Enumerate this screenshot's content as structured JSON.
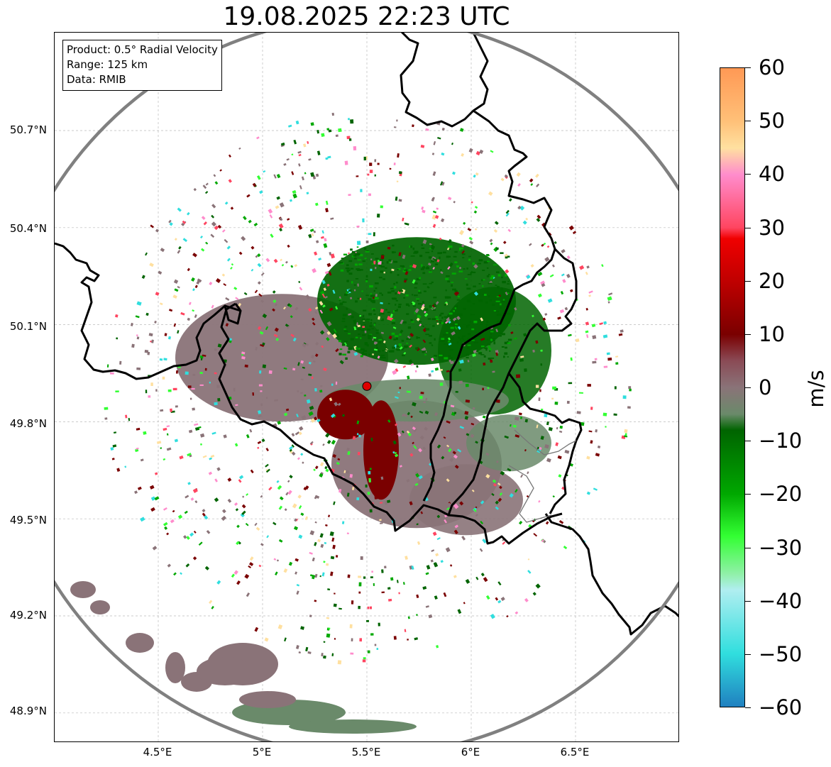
{
  "title": "19.08.2025 22:23 UTC",
  "info_box": {
    "product": "Product: 0.5° Radial Velocity",
    "range": "Range: 125 km",
    "data": "Data: RMIB"
  },
  "axes": {
    "y_ticks": [
      "50.7°N",
      "50.4°N",
      "50.1°N",
      "49.8°N",
      "49.5°N",
      "49.2°N",
      "48.9°N"
    ],
    "x_ticks": [
      "4.5°E",
      "5°E",
      "5.5°E",
      "6°E",
      "6.5°E"
    ],
    "lat_range": [
      48.8,
      51.0
    ],
    "lon_range": [
      4.0,
      7.0
    ],
    "grid": true
  },
  "radar": {
    "site_lon": 5.5,
    "site_lat": 49.91,
    "range_km": 125,
    "marker_color": "#e00000"
  },
  "colorbar": {
    "label": "m/s",
    "min": -60,
    "max": 60,
    "ticks": [
      "60",
      "50",
      "40",
      "30",
      "20",
      "10",
      "0",
      "−10",
      "−20",
      "−30",
      "−40",
      "−50",
      "−60"
    ],
    "colors": {
      "p60": "#ff9955",
      "p50": "#ffc078",
      "p45": "#ffe0a0",
      "p40": "#ff8ccc",
      "p30": "#ff4560",
      "p28": "#f00000",
      "p20": "#c00000",
      "p10": "#7a0000",
      "p5": "#8a4a55",
      "zero": "#8a7378",
      "m5": "#6a8a6a",
      "m10": "#006400",
      "m20": "#00a800",
      "m30": "#33ff33",
      "m35": "#90f0a8",
      "m40": "#b0eef0",
      "m50": "#30dede",
      "m60": "#2080c0"
    }
  }
}
